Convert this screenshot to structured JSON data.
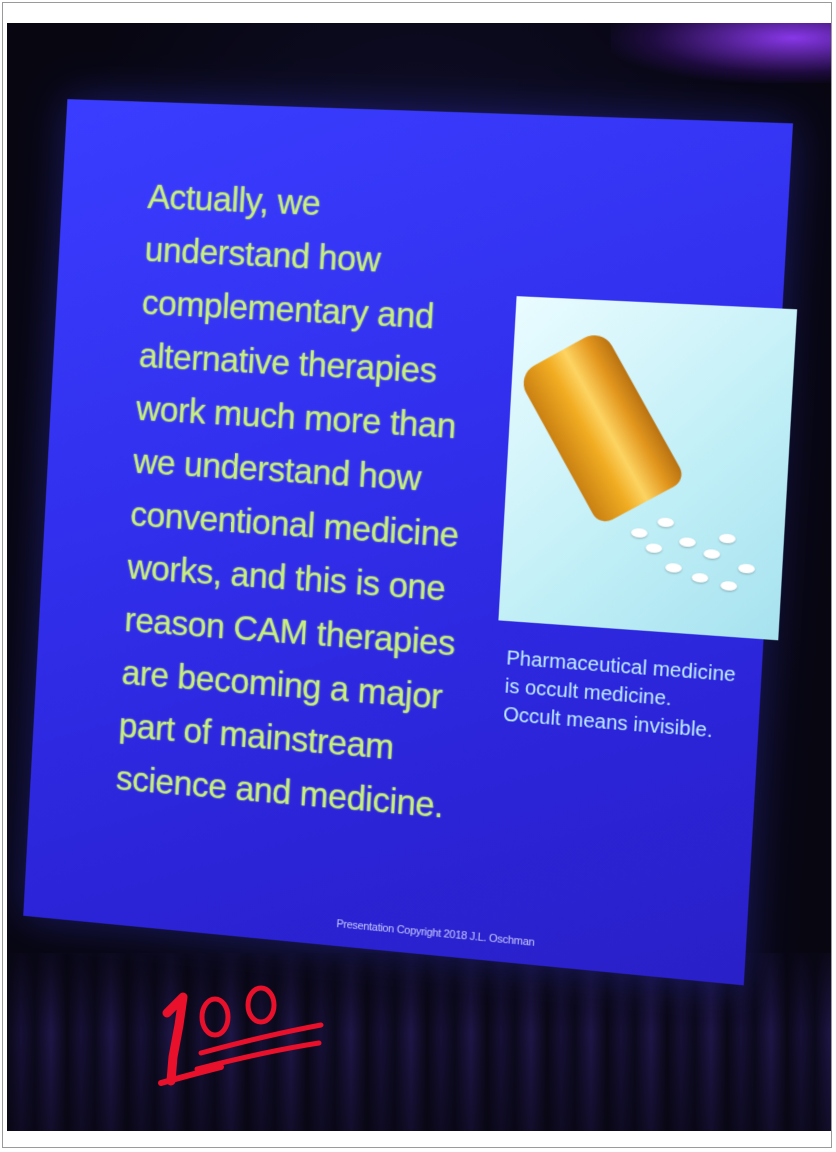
{
  "slide": {
    "main_text": "Actually, we\nunderstand how\ncomplementary and\nalternative therapies\nwork much more than\nwe understand how\nconventional medicine\nworks, and this is one\nreason CAM therapies\nare becoming a major\npart of mainstream\nscience and medicine.",
    "caption": "Pharmaceutical medicine\nis occult medicine.\nOccult means invisible.",
    "copyright": "Presentation Copyright 2018 J.L. Oschman",
    "image_icon": "pill-bottle-icon",
    "colors": {
      "slide_background": "#3232ee",
      "main_text": "#c7ef7d",
      "caption_text": "#c3f1ff"
    }
  },
  "overlay": {
    "icon": "hundred-points-icon",
    "color": "#e8102a"
  }
}
